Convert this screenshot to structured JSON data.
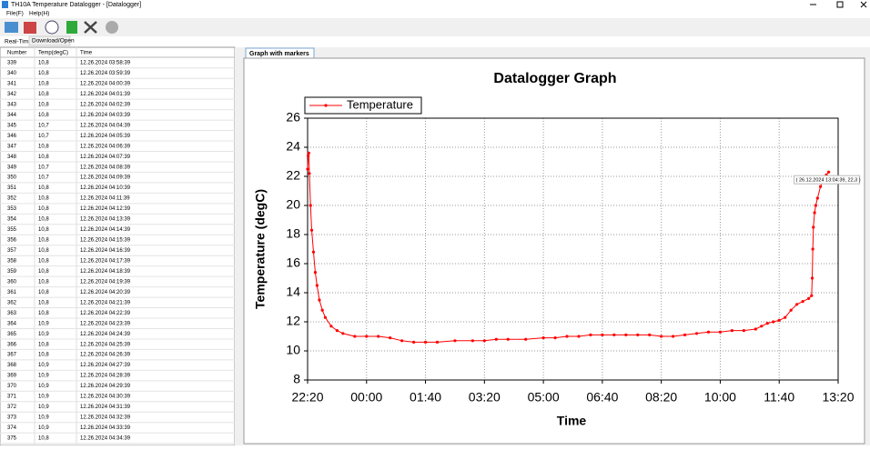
{
  "window": {
    "title": "TH10A Temperature Datalogger - [Datalogger]"
  },
  "menu": [
    "File(F)",
    "Help(H)"
  ],
  "tabs": [
    "Real-Time",
    "Download/Open"
  ],
  "table": {
    "columns": [
      "Number",
      "Temp(degC)",
      "Time"
    ],
    "rows": [
      [
        "339",
        "10,8",
        "12.26.2024 03:58:39"
      ],
      [
        "340",
        "10,8",
        "12.26.2024 03:59:39"
      ],
      [
        "341",
        "10,8",
        "12.26.2024 04:00:39"
      ],
      [
        "342",
        "10,8",
        "12.26.2024 04:01:39"
      ],
      [
        "343",
        "10,8",
        "12.26.2024 04:02:39"
      ],
      [
        "344",
        "10,8",
        "12.26.2024 04:03:39"
      ],
      [
        "345",
        "10,7",
        "12.26.2024 04:04:39"
      ],
      [
        "346",
        "10,7",
        "12.26.2024 04:05:39"
      ],
      [
        "347",
        "10,8",
        "12.26.2024 04:06:39"
      ],
      [
        "348",
        "10,8",
        "12.26.2024 04:07:39"
      ],
      [
        "349",
        "10,7",
        "12.26.2024 04:08:39"
      ],
      [
        "350",
        "10,7",
        "12.26.2024 04:09:39"
      ],
      [
        "351",
        "10,8",
        "12.26.2024 04:10:39"
      ],
      [
        "352",
        "10,8",
        "12.26.2024 04:11:39"
      ],
      [
        "353",
        "10,8",
        "12.26.2024 04:12:39"
      ],
      [
        "354",
        "10,8",
        "12.26.2024 04:13:39"
      ],
      [
        "355",
        "10,8",
        "12.26.2024 04:14:39"
      ],
      [
        "356",
        "10,8",
        "12.26.2024 04:15:39"
      ],
      [
        "357",
        "10,8",
        "12.26.2024 04:16:39"
      ],
      [
        "358",
        "10,8",
        "12.26.2024 04:17:39"
      ],
      [
        "359",
        "10,8",
        "12.26.2024 04:18:39"
      ],
      [
        "360",
        "10,8",
        "12.26.2024 04:19:39"
      ],
      [
        "361",
        "10,8",
        "12.26.2024 04:20:39"
      ],
      [
        "362",
        "10,8",
        "12.26.2024 04:21:39"
      ],
      [
        "363",
        "10,8",
        "12.26.2024 04:22:39"
      ],
      [
        "364",
        "10,9",
        "12.26.2024 04:23:39"
      ],
      [
        "365",
        "10,9",
        "12.26.2024 04:24:39"
      ],
      [
        "366",
        "10,8",
        "12.26.2024 04:25:39"
      ],
      [
        "367",
        "10,8",
        "12.26.2024 04:26:39"
      ],
      [
        "368",
        "10,9",
        "12.26.2024 04:27:39"
      ],
      [
        "369",
        "10,9",
        "12.26.2024 04:28:39"
      ],
      [
        "370",
        "10,9",
        "12.26.2024 04:29:39"
      ],
      [
        "371",
        "10,9",
        "12.26.2024 04:30:39"
      ],
      [
        "372",
        "10,9",
        "12.26.2024 04:31:39"
      ],
      [
        "373",
        "10,9",
        "12.26.2024 04:32:39"
      ],
      [
        "374",
        "10,9",
        "12.26.2024 04:33:39"
      ],
      [
        "375",
        "10,8",
        "12.26.2024 04:34:39"
      ]
    ]
  },
  "chart_tab": "Graph with markers",
  "chart_data": {
    "type": "line",
    "title": "Datalogger Graph",
    "x_label": "Time",
    "y_label": "Temperature (degC)",
    "x": [
      "22:20",
      "22:21",
      "22:22",
      "22:23",
      "22:25",
      "22:27",
      "22:30",
      "22:33",
      "22:36",
      "22:40",
      "22:45",
      "22:50",
      "23:00",
      "23:10",
      "23:20",
      "23:40",
      "00:00",
      "00:20",
      "00:40",
      "01:00",
      "01:20",
      "01:40",
      "02:00",
      "02:30",
      "03:00",
      "03:20",
      "03:40",
      "04:00",
      "04:30",
      "05:00",
      "05:20",
      "05:40",
      "06:00",
      "06:20",
      "06:40",
      "07:00",
      "07:20",
      "07:40",
      "08:00",
      "08:20",
      "08:40",
      "09:00",
      "09:20",
      "09:40",
      "10:00",
      "10:20",
      "10:40",
      "11:00",
      "11:10",
      "11:20",
      "11:30",
      "11:40",
      "11:50",
      "12:00",
      "12:10",
      "12:20",
      "12:30",
      "12:35",
      "12:36",
      "12:37",
      "12:38",
      "12:40",
      "12:42",
      "12:45",
      "12:50",
      "12:55",
      "13:00",
      "13:04"
    ],
    "series": [
      {
        "name": "Temperature",
        "color": "#ff0000",
        "values": [
          22.5,
          23.4,
          23.6,
          22.2,
          20.0,
          18.3,
          16.8,
          15.4,
          14.5,
          13.5,
          12.8,
          12.3,
          11.7,
          11.4,
          11.2,
          11.0,
          11.0,
          11.0,
          10.9,
          10.7,
          10.6,
          10.6,
          10.6,
          10.7,
          10.7,
          10.7,
          10.8,
          10.8,
          10.8,
          10.9,
          10.9,
          11.0,
          11.0,
          11.1,
          11.1,
          11.1,
          11.1,
          11.1,
          11.1,
          11.0,
          11.0,
          11.1,
          11.2,
          11.3,
          11.3,
          11.4,
          11.4,
          11.5,
          11.7,
          11.9,
          12.0,
          12.1,
          12.3,
          12.8,
          13.2,
          13.4,
          13.6,
          13.8,
          15.0,
          17.0,
          18.5,
          19.5,
          20.0,
          20.5,
          21.3,
          21.8,
          22.1,
          22.3
        ]
      }
    ],
    "xlim": [
      "22:20",
      "13:20"
    ],
    "xticks": [
      "22:20",
      "00:00",
      "01:40",
      "03:20",
      "05:00",
      "06:40",
      "08:20",
      "10:00",
      "11:40",
      "13:20"
    ],
    "ylim": [
      8,
      26
    ],
    "yticks": [
      8,
      10,
      12,
      14,
      16,
      18,
      20,
      22,
      24,
      26
    ],
    "grid": true,
    "legend": "top-left",
    "annotation": "( 26.12.2024 13:04:39, 22,3 )"
  }
}
